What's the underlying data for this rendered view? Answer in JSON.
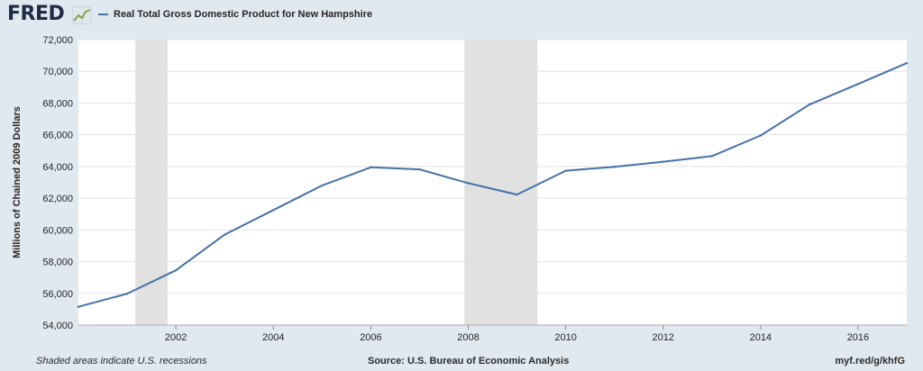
{
  "header": {
    "logo_text": "FRED",
    "logo_icon": "trend-sparkline-icon"
  },
  "footer": {
    "note": "Shaded areas indicate U.S. recessions",
    "source": "Source: U.S. Bureau of Economic Analysis",
    "url": "myf.red/g/khfG"
  },
  "colors": {
    "line": "#4572a7",
    "recession": "#e1e1e1",
    "plot_bg": "#ffffff",
    "page_bg": "#e1e9f0",
    "grid": "#e3e3e3"
  },
  "chart_data": {
    "type": "line",
    "title": "",
    "xlabel": "",
    "ylabel": "Millions of Chained 2009 Dollars",
    "legend_position": "top-left",
    "grid": true,
    "xlim": [
      2000,
      2017
    ],
    "ylim": [
      54000,
      72000
    ],
    "x_ticks": [
      "2002",
      "2004",
      "2006",
      "2008",
      "2010",
      "2012",
      "2014",
      "2016"
    ],
    "y_ticks": [
      "54,000",
      "56,000",
      "58,000",
      "60,000",
      "62,000",
      "64,000",
      "66,000",
      "68,000",
      "70,000",
      "72,000"
    ],
    "recessions": [
      {
        "start": 2001.17,
        "end": 2001.83
      },
      {
        "start": 2007.92,
        "end": 2009.42
      }
    ],
    "series": [
      {
        "name": "Real Total Gross Domestic Product for New Hampshire",
        "x": [
          2000,
          2001,
          2002,
          2003,
          2004,
          2005,
          2006,
          2007,
          2008,
          2009,
          2010,
          2011,
          2012,
          2013,
          2014,
          2015,
          2016,
          2017
        ],
        "values": [
          55150,
          55980,
          57450,
          59700,
          61250,
          62800,
          63950,
          63820,
          62950,
          62230,
          63730,
          63980,
          64300,
          64650,
          65950,
          67900,
          69200,
          70520
        ]
      }
    ]
  }
}
